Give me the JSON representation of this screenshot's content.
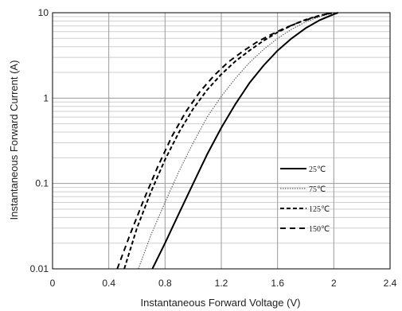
{
  "chart_data": {
    "type": "line",
    "title": "",
    "xlabel": "Instantaneous Forward Voltage (V)",
    "ylabel": "Instantaneous Forward Current (A)",
    "xlim": [
      0,
      2.4
    ],
    "ylim": [
      0.01,
      10
    ],
    "yscale": "log",
    "grid": true,
    "legend_position": "lower-right",
    "x_ticks": [
      "0",
      "0.4",
      "0.8",
      "1.2",
      "1.6",
      "2",
      "2.4"
    ],
    "y_ticks": [
      "0.01",
      "0.1",
      "1",
      "10"
    ],
    "series": [
      {
        "name": "25℃",
        "style": "solid",
        "color": "#000000",
        "x": [
          0.71,
          0.8,
          0.9,
          1.0,
          1.1,
          1.2,
          1.3,
          1.4,
          1.5,
          1.6,
          1.7,
          1.8,
          1.9,
          2.0,
          2.03
        ],
        "y": [
          0.01,
          0.02,
          0.045,
          0.1,
          0.22,
          0.45,
          0.85,
          1.5,
          2.4,
          3.6,
          5.0,
          6.6,
          8.2,
          9.6,
          10
        ]
      },
      {
        "name": "75℃",
        "style": "dotted",
        "color": "#666666",
        "x": [
          0.61,
          0.7,
          0.8,
          0.9,
          1.0,
          1.1,
          1.2,
          1.3,
          1.4,
          1.5,
          1.6,
          1.7,
          1.8,
          1.9,
          2.0
        ],
        "y": [
          0.01,
          0.025,
          0.06,
          0.14,
          0.3,
          0.6,
          1.05,
          1.7,
          2.6,
          3.7,
          5.0,
          6.4,
          7.8,
          9.0,
          10
        ]
      },
      {
        "name": "125℃",
        "style": "dashed",
        "color": "#000000",
        "x": [
          0.51,
          0.6,
          0.7,
          0.8,
          0.9,
          1.0,
          1.1,
          1.2,
          1.3,
          1.4,
          1.5,
          1.6,
          1.7,
          1.8,
          1.9,
          2.0
        ],
        "y": [
          0.01,
          0.03,
          0.08,
          0.19,
          0.4,
          0.75,
          1.25,
          1.9,
          2.7,
          3.6,
          4.7,
          5.9,
          7.1,
          8.3,
          9.3,
          10
        ]
      },
      {
        "name": "150℃",
        "style": "long-dash",
        "color": "#000000",
        "x": [
          0.46,
          0.55,
          0.65,
          0.75,
          0.85,
          0.95,
          1.05,
          1.15,
          1.25,
          1.35,
          1.45,
          1.55,
          1.65,
          1.75,
          1.85,
          1.98
        ],
        "y": [
          0.01,
          0.025,
          0.065,
          0.16,
          0.36,
          0.7,
          1.2,
          1.85,
          2.65,
          3.5,
          4.5,
          5.5,
          6.6,
          7.7,
          8.7,
          10
        ]
      }
    ]
  }
}
